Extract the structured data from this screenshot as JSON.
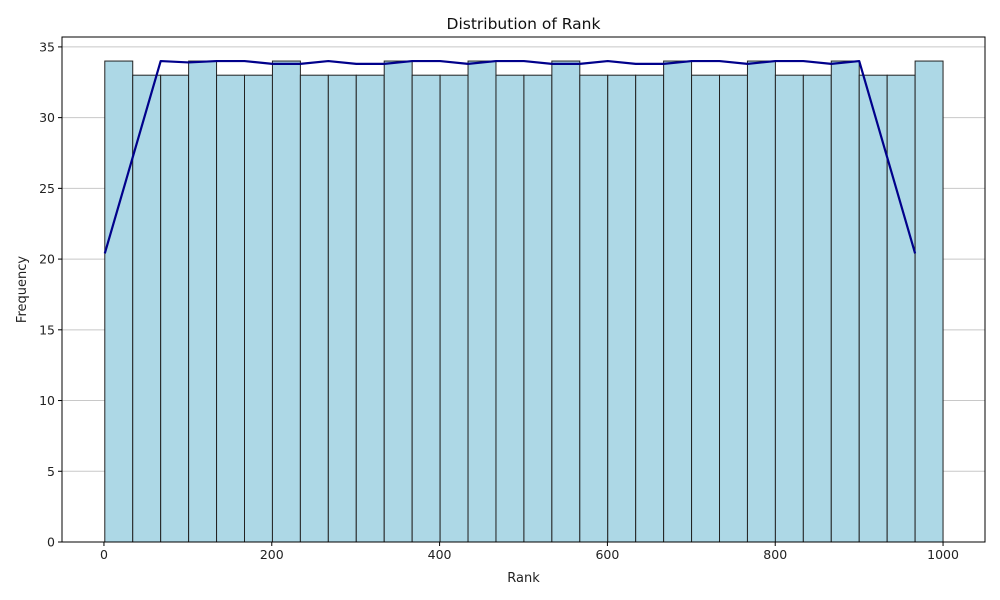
{
  "chart_data": {
    "type": "bar",
    "title": "Distribution of Rank",
    "xlabel": "Rank",
    "ylabel": "Frequency",
    "xlim": [
      -50,
      1050
    ],
    "ylim": [
      0,
      35.7
    ],
    "x_ticks": [
      0,
      200,
      400,
      600,
      800,
      1000
    ],
    "y_ticks": [
      0,
      5,
      10,
      15,
      20,
      25,
      30,
      35
    ],
    "grid": "y",
    "bin_edges": [
      1,
      34.3,
      67.6,
      100.9,
      134.2,
      167.5,
      200.8,
      234.1,
      267.4,
      300.7,
      334,
      367.3,
      400.6,
      433.9,
      467.2,
      500.5,
      533.8,
      567.1,
      600.4,
      633.7,
      667,
      700.3,
      733.6,
      766.9,
      800.2,
      833.5,
      866.8,
      900.1,
      933.4,
      966.7,
      1000
    ],
    "values": [
      34,
      33,
      33,
      34,
      33,
      33,
      34,
      33,
      33,
      33,
      34,
      33,
      33,
      34,
      33,
      33,
      34,
      33,
      33,
      33,
      34,
      33,
      33,
      34,
      33,
      33,
      34,
      33,
      33,
      34
    ],
    "bar_color": "#add8e6",
    "bar_edge_color": "#222222",
    "line": {
      "color": "#00008b",
      "x": [
        1,
        67.6,
        100.9,
        134.2,
        167.5,
        200.8,
        234.1,
        267.4,
        300.7,
        334,
        367.3,
        400.6,
        433.9,
        467.2,
        500.5,
        533.8,
        567.1,
        600.4,
        633.7,
        667,
        700.3,
        733.6,
        766.9,
        800.2,
        833.5,
        866.8,
        900.1,
        966.7
      ],
      "y": [
        20.4,
        34,
        33.9,
        34,
        34,
        33.8,
        33.8,
        34,
        33.8,
        33.8,
        34,
        34,
        33.8,
        34,
        34,
        33.8,
        33.8,
        34,
        33.8,
        33.8,
        34,
        34,
        33.8,
        34,
        34,
        33.8,
        34,
        20.4
      ]
    }
  }
}
